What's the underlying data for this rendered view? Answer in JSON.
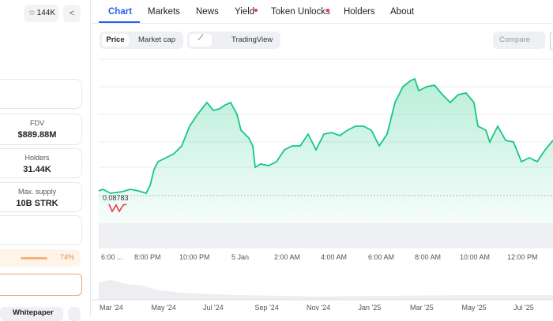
{
  "header": {
    "stars": "144K",
    "tabs": [
      "Chart",
      "Markets",
      "News",
      "Yield",
      "Token Unlocks",
      "Holders",
      "About"
    ]
  },
  "toolbar": {
    "price": "Price",
    "market_cap": "Market cap",
    "tradingview": "TradingView",
    "compare": "Compare"
  },
  "sidebar": {
    "cards": [
      {
        "label": "FDV",
        "value": "$889.88M"
      },
      {
        "label": "Holders",
        "value": "31.44K"
      },
      {
        "label": "Max. supply",
        "value": "10B STRK"
      }
    ],
    "progress": "74%",
    "whitepaper": "Whitepaper"
  },
  "chart": {
    "price_label": "0.08783",
    "time_labels": [
      "6:00 ...",
      "8:00 PM",
      "10:00 PM",
      "5 Jan",
      "2:00 AM",
      "4:00 AM",
      "6:00 AM",
      "8:00 AM",
      "10:00 AM",
      "12:00 PM"
    ],
    "range_labels": [
      "Mar '24",
      "May '24",
      "Jul '24",
      "Sep '24",
      "Nov '24",
      "Jan '25",
      "Mar '25",
      "May '25",
      "Jul '25"
    ]
  }
}
